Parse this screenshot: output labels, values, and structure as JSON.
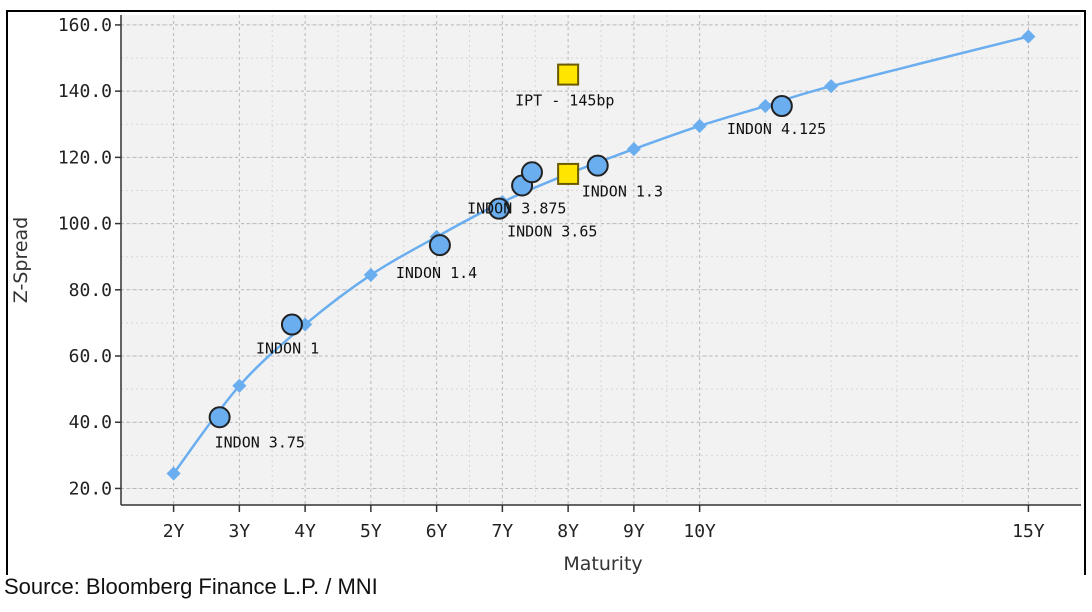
{
  "chart_data": {
    "type": "scatter",
    "title": "",
    "xlabel": "Maturity",
    "ylabel": "Z-Spread",
    "xlim": [
      1.2,
      15.8
    ],
    "ylim": [
      15,
      163
    ],
    "x_ticks": [
      {
        "value": 2,
        "label": "2Y"
      },
      {
        "value": 3,
        "label": "3Y"
      },
      {
        "value": 4,
        "label": "4Y"
      },
      {
        "value": 5,
        "label": "5Y"
      },
      {
        "value": 6,
        "label": "6Y"
      },
      {
        "value": 7,
        "label": "7Y"
      },
      {
        "value": 8,
        "label": "8Y"
      },
      {
        "value": 9,
        "label": "9Y"
      },
      {
        "value": 10,
        "label": "10Y"
      },
      {
        "value": 15,
        "label": "15Y"
      }
    ],
    "y_ticks": [
      {
        "value": 20,
        "label": "20.0"
      },
      {
        "value": 40,
        "label": "40.0"
      },
      {
        "value": 60,
        "label": "60.0"
      },
      {
        "value": 80,
        "label": "80.0"
      },
      {
        "value": 100,
        "label": "100.0"
      },
      {
        "value": 120,
        "label": "120.0"
      },
      {
        "value": 140,
        "label": "140.0"
      },
      {
        "value": 160,
        "label": "160.0"
      }
    ],
    "grid": true,
    "series": [
      {
        "name": "curve",
        "kind": "line",
        "color": "#6aaef0",
        "x": [
          2,
          3,
          4,
          5,
          6,
          7,
          8,
          9,
          10,
          11,
          12,
          15
        ],
        "y": [
          24.5,
          51,
          69.5,
          84.5,
          96,
          106.5,
          115,
          122.5,
          129.5,
          135.5,
          141.5,
          156.5
        ]
      },
      {
        "name": "bonds",
        "kind": "points",
        "color": "#6aaef0",
        "stroke": "#222222",
        "points": [
          {
            "x": 2.7,
            "y": 41.5,
            "label": "INDON 3.75"
          },
          {
            "x": 3.8,
            "y": 69.5,
            "label": "INDON 1"
          },
          {
            "x": 6.05,
            "y": 93.5,
            "label": "INDON 1.4"
          },
          {
            "x": 6.95,
            "y": 104.5,
            "label": "INDON 3.65"
          },
          {
            "x": 7.3,
            "y": 111.5,
            "label": "INDON 3.875"
          },
          {
            "x": 7.45,
            "y": 115.5,
            "label": ""
          },
          {
            "x": 8.45,
            "y": 117.5,
            "label": "INDON 1.3"
          },
          {
            "x": 11.25,
            "y": 135.5,
            "label": "INDON 4.125"
          }
        ]
      },
      {
        "name": "new issue",
        "kind": "squares",
        "color": "#ffe600",
        "stroke": "#6a5a00",
        "points": [
          {
            "x": 8.0,
            "y": 145,
            "label": "IPT - 145bp"
          },
          {
            "x": 8.0,
            "y": 115,
            "label": ""
          }
        ]
      }
    ]
  },
  "source_note": "Source: Bloomberg Finance L.P. / MNI"
}
